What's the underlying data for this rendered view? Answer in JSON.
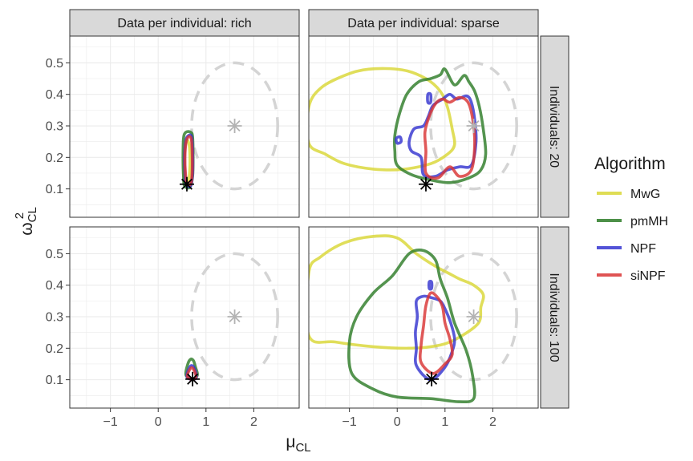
{
  "chart_data": {
    "type": "contour",
    "x_axis": {
      "label_main": "μ",
      "label_sub": "CL",
      "ticks": [
        -1,
        0,
        1,
        2
      ],
      "range": [
        -1.85,
        2.95
      ]
    },
    "y_axis": {
      "label_main": "ω",
      "label_sup": "2",
      "label_sub": "CL",
      "ticks": [
        0.1,
        0.2,
        0.3,
        0.4,
        0.5
      ],
      "range": [
        0.01,
        0.585
      ]
    },
    "columns": [
      "Data per individual: rich",
      "Data per individual: sparse"
    ],
    "rows": [
      "Individuals: 20",
      "Individuals: 100"
    ],
    "legend": {
      "title": "Algorithm",
      "position": "right",
      "entries": [
        {
          "name": "MwG",
          "color": "#d9d736"
        },
        {
          "name": "pmMH",
          "color": "#2e7d28"
        },
        {
          "name": "NPF",
          "color": "#3535d0"
        },
        {
          "name": "siNPF",
          "color": "#d93535"
        }
      ]
    },
    "grid": true,
    "panels": [
      {
        "col": 0,
        "row": 0,
        "prior_mean": [
          1.6,
          0.3
        ],
        "prior_contour": {
          "center": [
            1.6,
            0.3
          ],
          "rx": 0.9,
          "ry": 0.2
        },
        "true_value": [
          0.6,
          0.115
        ],
        "contours": [
          {
            "algorithm": "MwG",
            "points": [
              [
                0.55,
                0.12
              ],
              [
                0.62,
                0.12
              ],
              [
                0.66,
                0.16
              ],
              [
                0.66,
                0.22
              ],
              [
                0.63,
                0.25
              ],
              [
                0.58,
                0.25
              ],
              [
                0.55,
                0.21
              ],
              [
                0.54,
                0.16
              ]
            ]
          },
          {
            "algorithm": "pmMH",
            "points": [
              [
                0.55,
                0.11
              ],
              [
                0.66,
                0.105
              ],
              [
                0.72,
                0.14
              ],
              [
                0.73,
                0.2
              ],
              [
                0.72,
                0.265
              ],
              [
                0.68,
                0.28
              ],
              [
                0.58,
                0.28
              ],
              [
                0.53,
                0.26
              ],
              [
                0.52,
                0.19
              ],
              [
                0.53,
                0.14
              ]
            ]
          },
          {
            "algorithm": "NPF",
            "points": [
              [
                0.58,
                0.115
              ],
              [
                0.68,
                0.11
              ],
              [
                0.72,
                0.15
              ],
              [
                0.72,
                0.22
              ],
              [
                0.7,
                0.265
              ],
              [
                0.64,
                0.27
              ],
              [
                0.58,
                0.255
              ],
              [
                0.55,
                0.2
              ],
              [
                0.56,
                0.15
              ]
            ]
          },
          {
            "algorithm": "siNPF",
            "points": [
              [
                0.6,
                0.12
              ],
              [
                0.68,
                0.115
              ],
              [
                0.71,
                0.15
              ],
              [
                0.71,
                0.22
              ],
              [
                0.69,
                0.26
              ],
              [
                0.63,
                0.265
              ],
              [
                0.58,
                0.245
              ],
              [
                0.56,
                0.2
              ],
              [
                0.57,
                0.15
              ]
            ]
          }
        ]
      },
      {
        "col": 1,
        "row": 0,
        "prior_mean": [
          1.6,
          0.3
        ],
        "prior_contour": {
          "center": [
            1.6,
            0.3
          ],
          "rx": 0.9,
          "ry": 0.2
        },
        "true_value": [
          0.6,
          0.115
        ],
        "contours": [
          {
            "algorithm": "MwG",
            "points": [
              [
                -1.85,
                0.36
              ],
              [
                -1.6,
                0.42
              ],
              [
                -1.1,
                0.46
              ],
              [
                -0.6,
                0.48
              ],
              [
                0.1,
                0.478
              ],
              [
                0.6,
                0.45
              ],
              [
                0.9,
                0.41
              ],
              [
                1.05,
                0.36
              ],
              [
                1.15,
                0.29
              ],
              [
                1.2,
                0.24
              ],
              [
                1.05,
                0.21
              ],
              [
                0.7,
                0.18
              ],
              [
                0.1,
                0.162
              ],
              [
                -0.5,
                0.163
              ],
              [
                -1.1,
                0.18
              ],
              [
                -1.5,
                0.21
              ],
              [
                -1.85,
                0.245
              ]
            ]
          },
          {
            "algorithm": "pmMH",
            "points": [
              [
                0.0,
                0.175
              ],
              [
                0.3,
                0.145
              ],
              [
                0.65,
                0.13
              ],
              [
                1.1,
                0.12
              ],
              [
                1.5,
                0.135
              ],
              [
                1.75,
                0.16
              ],
              [
                1.85,
                0.21
              ],
              [
                1.8,
                0.29
              ],
              [
                1.72,
                0.36
              ],
              [
                1.62,
                0.41
              ],
              [
                1.5,
                0.44
              ],
              [
                1.4,
                0.46
              ],
              [
                1.2,
                0.43
              ],
              [
                1.0,
                0.48
              ],
              [
                0.9,
                0.462
              ],
              [
                0.7,
                0.45
              ],
              [
                0.45,
                0.44
              ],
              [
                0.2,
                0.4
              ],
              [
                0.05,
                0.34
              ],
              [
                -0.05,
                0.27
              ],
              [
                -0.05,
                0.22
              ]
            ]
          },
          {
            "algorithm": "NPF",
            "points": [
              [
                0.55,
                0.145
              ],
              [
                0.8,
                0.14
              ],
              [
                1.05,
                0.16
              ],
              [
                1.3,
                0.17
              ],
              [
                1.55,
                0.175
              ],
              [
                1.65,
                0.25
              ],
              [
                1.62,
                0.32
              ],
              [
                1.55,
                0.375
              ],
              [
                1.45,
                0.395
              ],
              [
                1.25,
                0.385
              ],
              [
                1.1,
                0.4
              ],
              [
                0.95,
                0.385
              ],
              [
                0.75,
                0.365
              ],
              [
                0.65,
                0.33
              ],
              [
                0.55,
                0.3
              ],
              [
                0.35,
                0.29
              ],
              [
                0.25,
                0.25
              ],
              [
                0.3,
                0.22
              ],
              [
                0.5,
                0.2
              ]
            ]
          },
          {
            "algorithm": "siNPF",
            "points": [
              [
                0.6,
                0.15
              ],
              [
                0.85,
                0.135
              ],
              [
                1.1,
                0.17
              ],
              [
                1.3,
                0.14
              ],
              [
                1.55,
                0.16
              ],
              [
                1.62,
                0.24
              ],
              [
                1.58,
                0.32
              ],
              [
                1.48,
                0.375
              ],
              [
                1.3,
                0.39
              ],
              [
                1.1,
                0.375
              ],
              [
                0.95,
                0.385
              ],
              [
                0.8,
                0.37
              ],
              [
                0.67,
                0.33
              ],
              [
                0.58,
                0.28
              ],
              [
                0.6,
                0.22
              ]
            ]
          }
        ],
        "extra_contours": [
          {
            "algorithm": "NPF",
            "points": [
              [
                0.0,
                0.245
              ],
              [
                0.08,
                0.25
              ],
              [
                0.06,
                0.265
              ],
              [
                -0.02,
                0.26
              ]
            ]
          },
          {
            "algorithm": "NPF",
            "points": [
              [
                0.64,
                0.375
              ],
              [
                0.7,
                0.375
              ],
              [
                0.7,
                0.4
              ],
              [
                0.64,
                0.4
              ]
            ]
          }
        ]
      },
      {
        "col": 0,
        "row": 1,
        "prior_mean": [
          1.6,
          0.3
        ],
        "prior_contour": {
          "center": [
            1.6,
            0.3
          ],
          "rx": 0.9,
          "ry": 0.2
        },
        "true_value": [
          0.72,
          0.102
        ],
        "contours": [
          {
            "algorithm": "pmMH",
            "points": [
              [
                0.58,
                0.115
              ],
              [
                0.72,
                0.1
              ],
              [
                0.82,
                0.115
              ],
              [
                0.78,
                0.14
              ],
              [
                0.74,
                0.16
              ],
              [
                0.68,
                0.165
              ],
              [
                0.62,
                0.15
              ]
            ]
          },
          {
            "algorithm": "NPF",
            "points": [
              [
                0.6,
                0.11
              ],
              [
                0.72,
                0.1
              ],
              [
                0.8,
                0.11
              ],
              [
                0.76,
                0.135
              ],
              [
                0.7,
                0.145
              ],
              [
                0.64,
                0.135
              ]
            ]
          },
          {
            "algorithm": "siNPF",
            "points": [
              [
                0.61,
                0.11
              ],
              [
                0.72,
                0.1
              ],
              [
                0.79,
                0.11
              ],
              [
                0.75,
                0.13
              ],
              [
                0.7,
                0.138
              ],
              [
                0.65,
                0.13
              ]
            ]
          }
        ]
      },
      {
        "col": 1,
        "row": 1,
        "prior_mean": [
          1.6,
          0.3
        ],
        "prior_contour": {
          "center": [
            1.6,
            0.3
          ],
          "rx": 0.9,
          "ry": 0.2
        },
        "true_value": [
          0.72,
          0.102
        ],
        "contours": [
          {
            "algorithm": "MwG",
            "points": [
              [
                -1.85,
                0.24
              ],
              [
                -1.3,
                0.22
              ],
              [
                -0.5,
                0.205
              ],
              [
                0.3,
                0.2
              ],
              [
                0.9,
                0.21
              ],
              [
                1.3,
                0.235
              ],
              [
                1.7,
                0.28
              ],
              [
                1.75,
                0.33
              ],
              [
                1.8,
                0.37
              ],
              [
                1.6,
                0.4
              ],
              [
                1.3,
                0.42
              ],
              [
                1.05,
                0.44
              ],
              [
                0.8,
                0.46
              ],
              [
                0.4,
                0.5
              ],
              [
                0.0,
                0.55
              ],
              [
                -0.5,
                0.555
              ],
              [
                -1.1,
                0.535
              ],
              [
                -1.6,
                0.49
              ],
              [
                -1.85,
                0.44
              ]
            ]
          },
          {
            "algorithm": "pmMH",
            "points": [
              [
                -0.95,
                0.12
              ],
              [
                -0.5,
                0.07
              ],
              [
                0.0,
                0.045
              ],
              [
                0.7,
                0.04
              ],
              [
                1.3,
                0.03
              ],
              [
                1.6,
                0.04
              ],
              [
                1.58,
                0.11
              ],
              [
                1.45,
                0.19
              ],
              [
                1.2,
                0.28
              ],
              [
                1.05,
                0.36
              ],
              [
                0.9,
                0.42
              ],
              [
                0.8,
                0.48
              ],
              [
                0.55,
                0.51
              ],
              [
                0.25,
                0.5
              ],
              [
                -0.1,
                0.43
              ],
              [
                -0.5,
                0.375
              ],
              [
                -0.85,
                0.3
              ],
              [
                -1.0,
                0.22
              ]
            ]
          },
          {
            "algorithm": "NPF",
            "points": [
              [
                0.4,
                0.145
              ],
              [
                0.7,
                0.1
              ],
              [
                1.0,
                0.14
              ],
              [
                1.15,
                0.19
              ],
              [
                1.2,
                0.23
              ],
              [
                1.12,
                0.28
              ],
              [
                1.0,
                0.325
              ],
              [
                0.9,
                0.35
              ],
              [
                0.72,
                0.36
              ],
              [
                0.55,
                0.365
              ],
              [
                0.4,
                0.35
              ],
              [
                0.42,
                0.3
              ],
              [
                0.38,
                0.25
              ],
              [
                0.4,
                0.2
              ]
            ]
          },
          {
            "algorithm": "siNPF",
            "points": [
              [
                0.5,
                0.155
              ],
              [
                0.75,
                0.12
              ],
              [
                1.0,
                0.15
              ],
              [
                1.15,
                0.18
              ],
              [
                1.1,
                0.23
              ],
              [
                1.0,
                0.28
              ],
              [
                0.95,
                0.33
              ],
              [
                0.85,
                0.36
              ],
              [
                0.7,
                0.375
              ],
              [
                0.6,
                0.335
              ],
              [
                0.55,
                0.27
              ],
              [
                0.5,
                0.21
              ]
            ]
          }
        ],
        "extra_contours": [
          {
            "algorithm": "NPF",
            "points": [
              [
                0.67,
                0.39
              ],
              [
                0.72,
                0.39
              ],
              [
                0.72,
                0.41
              ],
              [
                0.67,
                0.41
              ]
            ]
          }
        ]
      }
    ]
  }
}
